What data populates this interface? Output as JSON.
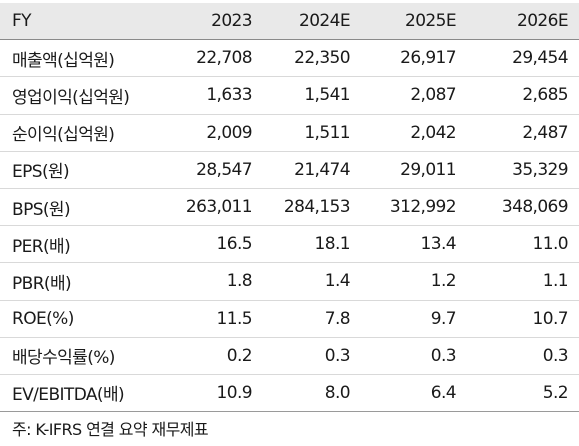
{
  "table": {
    "header": {
      "label": "FY",
      "years": [
        "2023",
        "2024E",
        "2025E",
        "2026E"
      ]
    },
    "rows": [
      {
        "label": "매출액(십억원)",
        "values": [
          "22,708",
          "22,350",
          "26,917",
          "29,454"
        ]
      },
      {
        "label": "영업이익(십억원)",
        "values": [
          "1,633",
          "1,541",
          "2,087",
          "2,685"
        ]
      },
      {
        "label": "순이익(십억원)",
        "values": [
          "2,009",
          "1,511",
          "2,042",
          "2,487"
        ]
      },
      {
        "label": "EPS(원)",
        "values": [
          "28,547",
          "21,474",
          "29,011",
          "35,329"
        ]
      },
      {
        "label": "BPS(원)",
        "values": [
          "263,011",
          "284,153",
          "312,992",
          "348,069"
        ]
      },
      {
        "label": "PER(배)",
        "values": [
          "16.5",
          "18.1",
          "13.4",
          "11.0"
        ]
      },
      {
        "label": "PBR(배)",
        "values": [
          "1.8",
          "1.4",
          "1.2",
          "1.1"
        ]
      },
      {
        "label": "ROE(%)",
        "values": [
          "11.5",
          "7.8",
          "9.7",
          "10.7"
        ]
      },
      {
        "label": "배당수익률(%)",
        "values": [
          "0.2",
          "0.3",
          "0.3",
          "0.3"
        ]
      },
      {
        "label": "EV/EBITDA(배)",
        "values": [
          "10.9",
          "8.0",
          "6.4",
          "5.2"
        ]
      }
    ]
  },
  "note": "주: K-IFRS 연결 요약 재무제표"
}
